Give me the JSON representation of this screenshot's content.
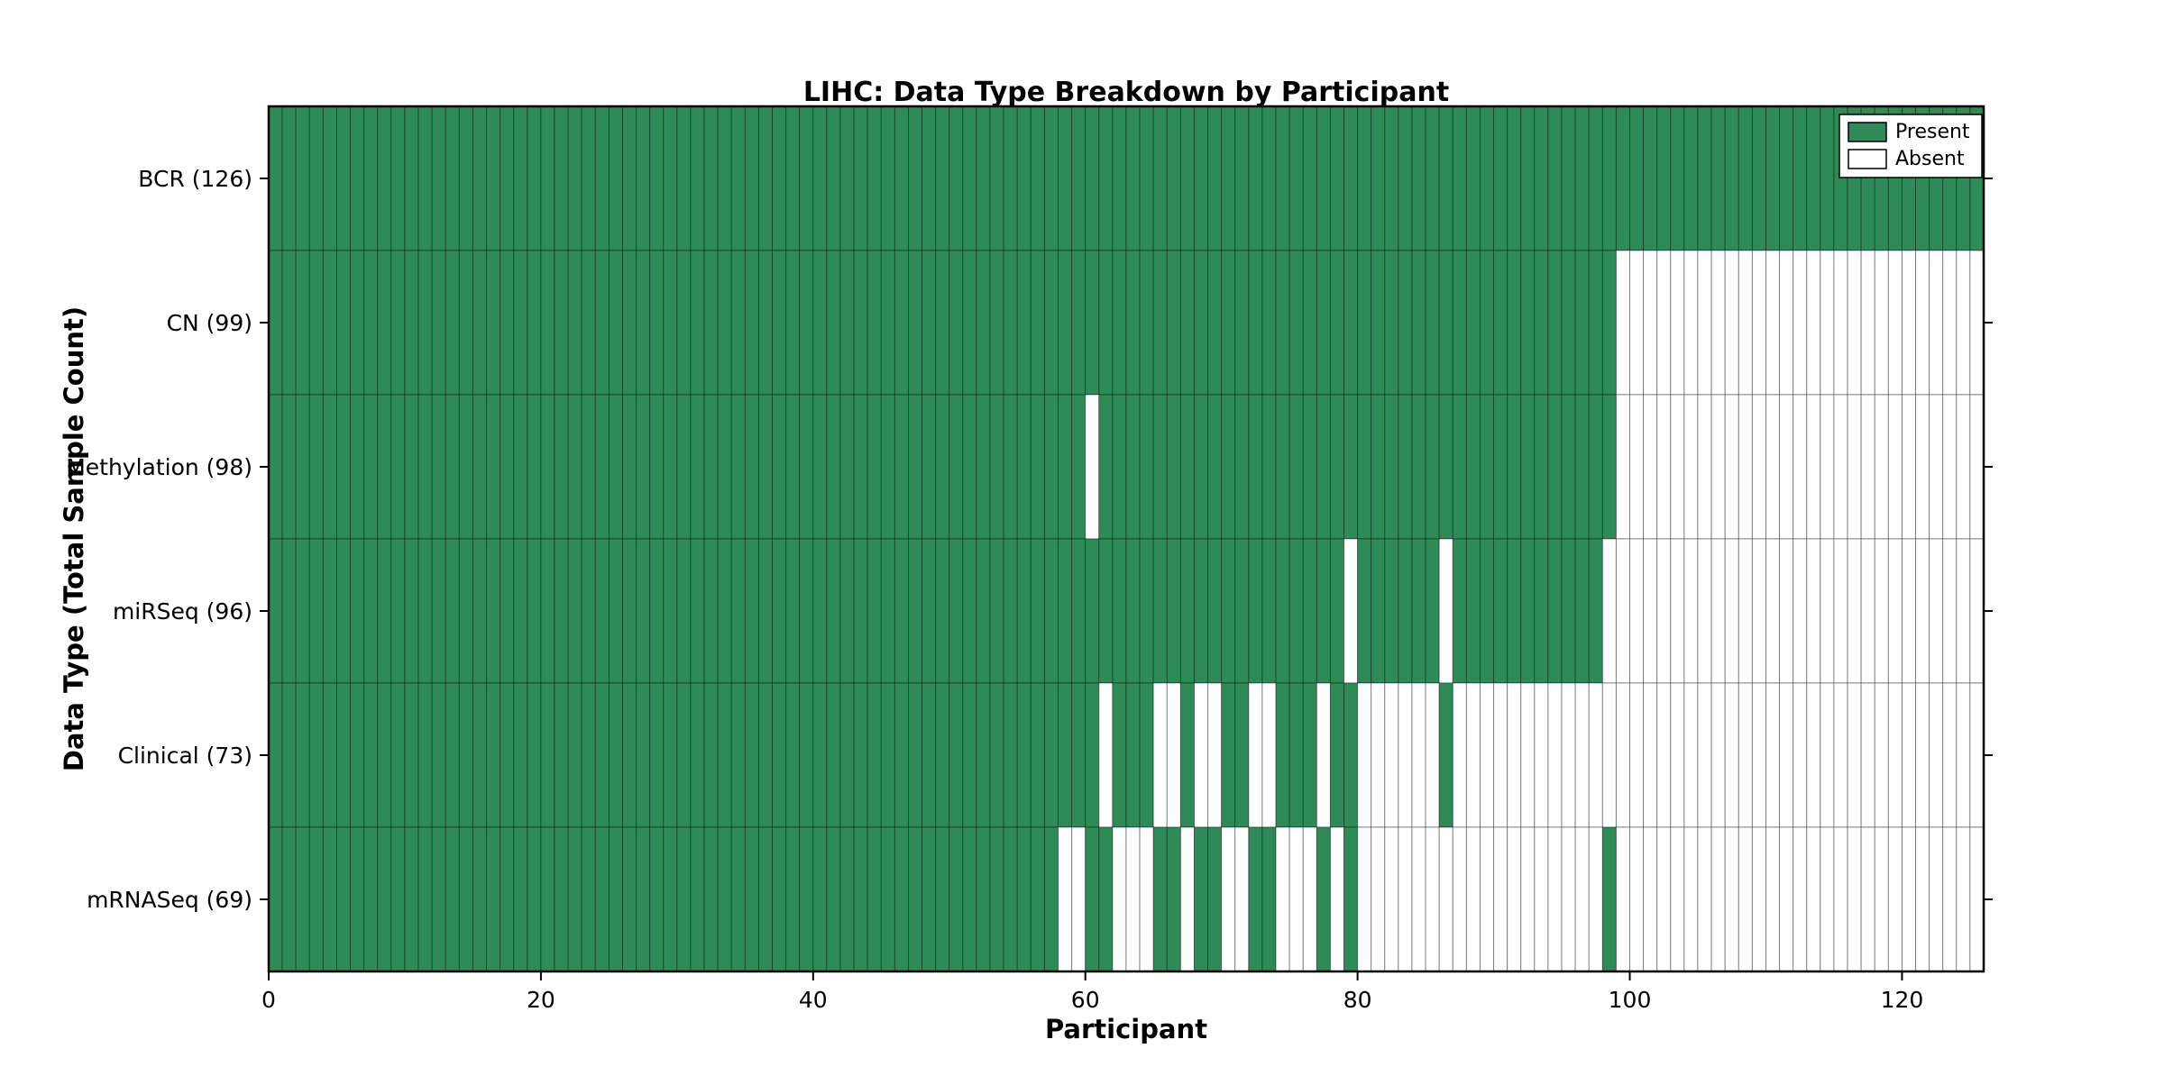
{
  "title": "LIHC: Data Type Breakdown by Participant",
  "x_axis_label": "Participant",
  "y_axis_label": "Data Type (Total Sample Count)",
  "legend": {
    "present_label": "Present",
    "absent_label": "Absent"
  },
  "colors": {
    "present": "#2E8B57",
    "absent": "#FFFFFF",
    "cell_border": "rgba(0,0,0,0.40)",
    "spine": "#000000",
    "background": "#FFFFFF",
    "text": "#000000"
  },
  "chart_data": {
    "type": "heatmap",
    "title": "LIHC: Data Type Breakdown by Participant",
    "xlabel": "Participant",
    "ylabel": "Data Type (Total Sample Count)",
    "legend_entries": [
      "Present",
      "Absent"
    ],
    "legend_position": "upper right",
    "grid": false,
    "n_participants": 126,
    "x_ticks": [
      0,
      20,
      40,
      60,
      80,
      100,
      120
    ],
    "x_range": [
      0,
      126
    ],
    "rows": [
      {
        "label": "BCR (126)",
        "data_type": "BCR",
        "total_sample_count": 126,
        "present_ranges": [
          [
            0,
            125
          ]
        ]
      },
      {
        "label": "CN (99)",
        "data_type": "CN",
        "total_sample_count": 99,
        "present_ranges": [
          [
            0,
            98
          ]
        ]
      },
      {
        "label": "Methylation (98)",
        "data_type": "Methylation",
        "total_sample_count": 98,
        "present_ranges": [
          [
            0,
            59
          ],
          [
            61,
            98
          ]
        ]
      },
      {
        "label": "miRSeq (96)",
        "data_type": "miRSeq",
        "total_sample_count": 96,
        "present_ranges": [
          [
            0,
            78
          ],
          [
            80,
            85
          ],
          [
            87,
            97
          ]
        ]
      },
      {
        "label": "Clinical (73)",
        "data_type": "Clinical",
        "total_sample_count": 73,
        "present_ranges": [
          [
            0,
            60
          ],
          [
            62,
            64
          ],
          [
            67,
            67
          ],
          [
            70,
            71
          ],
          [
            74,
            76
          ],
          [
            78,
            79
          ],
          [
            86,
            86
          ]
        ]
      },
      {
        "label": "mRNASeq (69)",
        "data_type": "mRNASeq",
        "total_sample_count": 69,
        "present_ranges": [
          [
            0,
            57
          ],
          [
            60,
            61
          ],
          [
            65,
            66
          ],
          [
            68,
            69
          ],
          [
            72,
            73
          ],
          [
            77,
            77
          ],
          [
            79,
            79
          ],
          [
            98,
            98
          ]
        ]
      }
    ]
  }
}
